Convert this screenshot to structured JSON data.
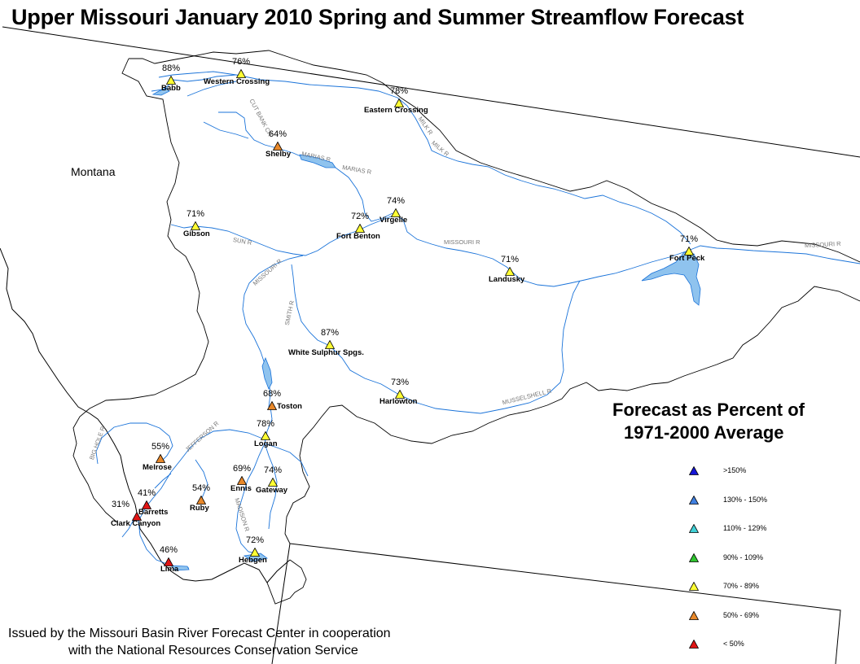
{
  "title": "Upper Missouri January 2010 Spring and Summer Streamflow Forecast",
  "state_label": "Montana",
  "legend": {
    "title_line1": "Forecast as Percent of",
    "title_line2": "1971-2000 Average",
    "items": [
      {
        "label": ">150%",
        "color": "#1515d6"
      },
      {
        "label": "130% - 150%",
        "color": "#3f7fe0"
      },
      {
        "label": "110% - 129%",
        "color": "#3fd0d6"
      },
      {
        "label": "90% - 109%",
        "color": "#2fc42f"
      },
      {
        "label": "70% - 89%",
        "color": "#ffff33"
      },
      {
        "label": "50% - 69%",
        "color": "#e8882a"
      },
      {
        "label": "< 50%",
        "color": "#e01515"
      }
    ]
  },
  "footer": {
    "line1": "Issued by the Missouri Basin River Forecast Center in cooperation",
    "line2": "with the National Resources Conservation Service"
  },
  "stations": [
    {
      "name": "Babb",
      "pct": "88%",
      "category": "70% - 89%"
    },
    {
      "name": "Western Crossing",
      "pct": "76%",
      "category": "70% - 89%"
    },
    {
      "name": "Eastern Crossing",
      "pct": "78%",
      "category": "70% - 89%"
    },
    {
      "name": "Shelby",
      "pct": "64%",
      "category": "50% - 69%"
    },
    {
      "name": "Virgelle",
      "pct": "74%",
      "category": "70% - 89%"
    },
    {
      "name": "Fort Benton",
      "pct": "72%",
      "category": "70% - 89%"
    },
    {
      "name": "Gibson",
      "pct": "71%",
      "category": "70% - 89%"
    },
    {
      "name": "Fort Peck",
      "pct": "71%",
      "category": "70% - 89%"
    },
    {
      "name": "Landusky",
      "pct": "71%",
      "category": "70% - 89%"
    },
    {
      "name": "White Sulphur Spgs.",
      "pct": "87%",
      "category": "70% - 89%"
    },
    {
      "name": "Harlowton",
      "pct": "73%",
      "category": "70% - 89%"
    },
    {
      "name": "Toston",
      "pct": "68%",
      "category": "50% - 69%"
    },
    {
      "name": "Logan",
      "pct": "78%",
      "category": "70% - 89%"
    },
    {
      "name": "Melrose",
      "pct": "55%",
      "category": "50% - 69%"
    },
    {
      "name": "Ennis",
      "pct": "69%",
      "category": "50% - 69%"
    },
    {
      "name": "Gateway",
      "pct": "74%",
      "category": "70% - 89%"
    },
    {
      "name": "Ruby",
      "pct": "54%",
      "category": "50% - 69%"
    },
    {
      "name": "Barretts",
      "pct": "41%",
      "category": "< 50%"
    },
    {
      "name": "Clark Canyon",
      "pct": "31%",
      "category": "< 50%"
    },
    {
      "name": "Hebgen",
      "pct": "72%",
      "category": "70% - 89%"
    },
    {
      "name": "Lima",
      "pct": "46%",
      "category": "< 50%"
    }
  ],
  "river_labels": [
    "MISSOURI R",
    "MISSOURI R",
    "MISSOURI R",
    "MARIAS R",
    "MARIAS R",
    "MILK R",
    "MILK R",
    "CUT BANK CR",
    "SUN R",
    "SMITH R",
    "MUSSELSHELL R",
    "JEFFERSON R",
    "BIG HOLE R",
    "MADISON R"
  ],
  "colors": {
    "river": "#1a73d9",
    "reservoir": "#8fc3ee",
    "boundary": "#000000"
  }
}
